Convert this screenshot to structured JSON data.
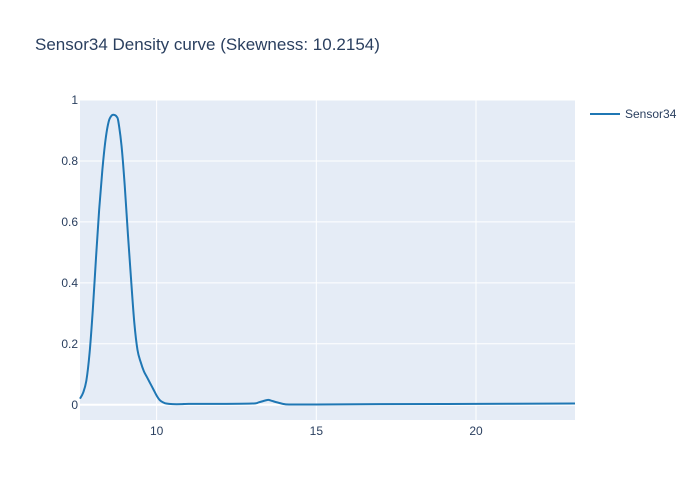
{
  "chart_data": {
    "type": "line",
    "title": "Sensor34 Density curve (Skewness: 10.2154)",
    "xlabel": "",
    "ylabel": "",
    "xlim": [
      7.6,
      23.1
    ],
    "ylim": [
      -0.05,
      1.0
    ],
    "x_ticks": [
      10,
      15,
      20
    ],
    "x_tick_labels": [
      "10",
      "15",
      "20"
    ],
    "y_ticks": [
      0,
      0.2,
      0.4,
      0.6,
      0.8,
      1
    ],
    "y_tick_labels": [
      "0",
      "0.2",
      "0.4",
      "0.6",
      "0.8",
      "1"
    ],
    "grid": true,
    "legend_position": "top-right",
    "series": [
      {
        "name": "Sensor34",
        "color": "#1f77b4",
        "x": [
          7.6,
          7.7,
          7.8,
          7.9,
          8.0,
          8.1,
          8.2,
          8.3,
          8.4,
          8.5,
          8.6,
          8.7,
          8.75,
          8.8,
          8.9,
          9.0,
          9.1,
          9.2,
          9.3,
          9.4,
          9.5,
          9.6,
          9.7,
          9.8,
          9.9,
          10.0,
          10.1,
          10.2,
          10.3,
          10.5,
          10.8,
          11.0,
          12.0,
          13.0,
          13.2,
          13.4,
          13.5,
          13.6,
          13.8,
          14.0,
          14.2,
          15.0,
          17.0,
          20.0,
          23.1
        ],
        "y": [
          0.02,
          0.04,
          0.08,
          0.17,
          0.31,
          0.48,
          0.64,
          0.77,
          0.87,
          0.93,
          0.95,
          0.95,
          0.945,
          0.93,
          0.85,
          0.72,
          0.56,
          0.41,
          0.27,
          0.18,
          0.14,
          0.11,
          0.09,
          0.07,
          0.05,
          0.03,
          0.015,
          0.008,
          0.004,
          0.002,
          0.002,
          0.003,
          0.003,
          0.004,
          0.008,
          0.014,
          0.016,
          0.013,
          0.007,
          0.002,
          0.001,
          0.001,
          0.002,
          0.003,
          0.004
        ]
      }
    ]
  }
}
